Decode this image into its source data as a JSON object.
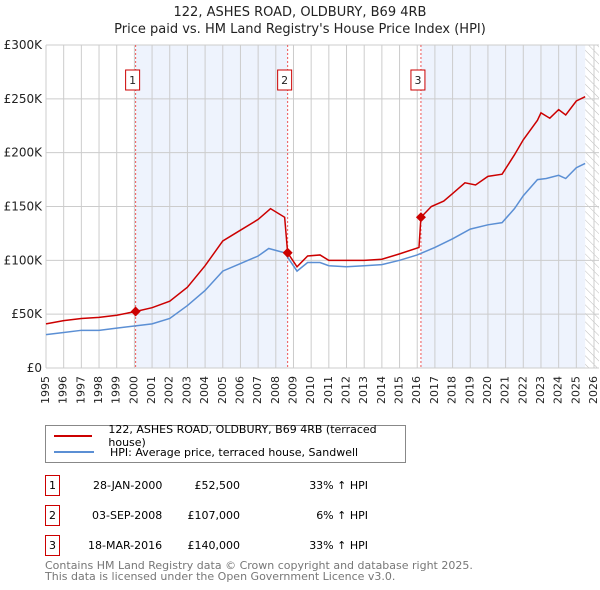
{
  "title": "122, ASHES ROAD, OLDBURY, B69 4RB",
  "subtitle": "Price paid vs. HM Land Registry's House Price Index (HPI)",
  "chart_data": {
    "type": "line",
    "title": "122, ASHES ROAD, OLDBURY, B69 4RB — Price paid vs. HM Land Registry's House Price Index (HPI)",
    "xlim": [
      1995,
      2026
    ],
    "ylim": [
      0,
      300000
    ],
    "x_ticks": [
      "1995",
      "1996",
      "1997",
      "1998",
      "1999",
      "2000",
      "2001",
      "2002",
      "2003",
      "2004",
      "2005",
      "2006",
      "2007",
      "2008",
      "2009",
      "2010",
      "2011",
      "2012",
      "2013",
      "2014",
      "2015",
      "2016",
      "2017",
      "2018",
      "2019",
      "2020",
      "2021",
      "2022",
      "2023",
      "2024",
      "2025",
      "2026"
    ],
    "y_ticks": [
      {
        "v": 0,
        "l": "£0"
      },
      {
        "v": 50000,
        "l": "£50K"
      },
      {
        "v": 100000,
        "l": "£100K"
      },
      {
        "v": 150000,
        "l": "£150K"
      },
      {
        "v": 200000,
        "l": "£200K"
      },
      {
        "v": 250000,
        "l": "£250K"
      },
      {
        "v": 300000,
        "l": "£300K"
      }
    ],
    "grid": true,
    "series": [
      {
        "name": "122, ASHES ROAD, OLDBURY, B69 4RB (terraced house)",
        "color": "#cc0000",
        "x": [
          1995,
          1996,
          1997,
          1998,
          1999,
          2000.07,
          2001,
          2002,
          2003,
          2004,
          2005,
          2006,
          2007,
          2007.7,
          2008.5,
          2008.67,
          2009.2,
          2009.8,
          2010.5,
          2011,
          2012,
          2013,
          2014,
          2015,
          2016.1,
          2016.21,
          2016.8,
          2017.5,
          2018,
          2018.7,
          2019.3,
          2020,
          2020.8,
          2021.5,
          2022,
          2022.8,
          2023,
          2023.5,
          2024,
          2024.4,
          2025,
          2025.5
        ],
        "y": [
          41000,
          44000,
          46000,
          47000,
          49000,
          52500,
          56000,
          62000,
          75000,
          95000,
          118000,
          128000,
          138000,
          148000,
          140000,
          107000,
          94000,
          104000,
          105000,
          100000,
          100000,
          100000,
          101000,
          106000,
          112000,
          140000,
          150000,
          155000,
          162000,
          172000,
          170000,
          178000,
          180000,
          198000,
          212000,
          230000,
          237000,
          232000,
          240000,
          235000,
          248000,
          252000
        ]
      },
      {
        "name": "HPI: Average price, terraced house, Sandwell",
        "color": "#5b8fd4",
        "x": [
          1995,
          1996,
          1997,
          1998,
          1999,
          2000,
          2001,
          2002,
          2003,
          2004,
          2005,
          2006,
          2007,
          2007.6,
          2008.5,
          2009.2,
          2009.8,
          2010.5,
          2011,
          2012,
          2013,
          2014,
          2015,
          2016,
          2017,
          2018,
          2019,
          2020,
          2020.8,
          2021.5,
          2022,
          2022.8,
          2023.3,
          2024,
          2024.4,
          2025,
          2025.5
        ],
        "y": [
          31000,
          33000,
          35000,
          35000,
          37000,
          39000,
          41000,
          46000,
          58000,
          72000,
          90000,
          97000,
          104000,
          111000,
          107000,
          90000,
          98000,
          98000,
          95000,
          94000,
          95000,
          96000,
          100000,
          105000,
          112000,
          120000,
          129000,
          133000,
          135000,
          148000,
          160000,
          175000,
          176000,
          179000,
          176000,
          186000,
          190000
        ]
      }
    ],
    "sales": [
      {
        "n": "1",
        "x": 2000.07,
        "y": 52500,
        "date": "28-JAN-2000",
        "price": "£52,500",
        "hpi": "33% ↑ HPI"
      },
      {
        "n": "2",
        "x": 2008.67,
        "y": 107000,
        "date": "03-SEP-2008",
        "price": "£107,000",
        "hpi": "6% ↑ HPI"
      },
      {
        "n": "3",
        "x": 2016.21,
        "y": 140000,
        "date": "18-MAR-2016",
        "price": "£140,000",
        "hpi": "33% ↑ HPI"
      }
    ],
    "forecast_start": 2025.5,
    "legend_position": "below"
  },
  "legend": [
    "122, ASHES ROAD, OLDBURY, B69 4RB (terraced house)",
    "HPI: Average price, terraced house, Sandwell"
  ],
  "footer": [
    "Contains HM Land Registry data © Crown copyright and database right 2025.",
    "This data is licensed under the Open Government Licence v3.0."
  ]
}
